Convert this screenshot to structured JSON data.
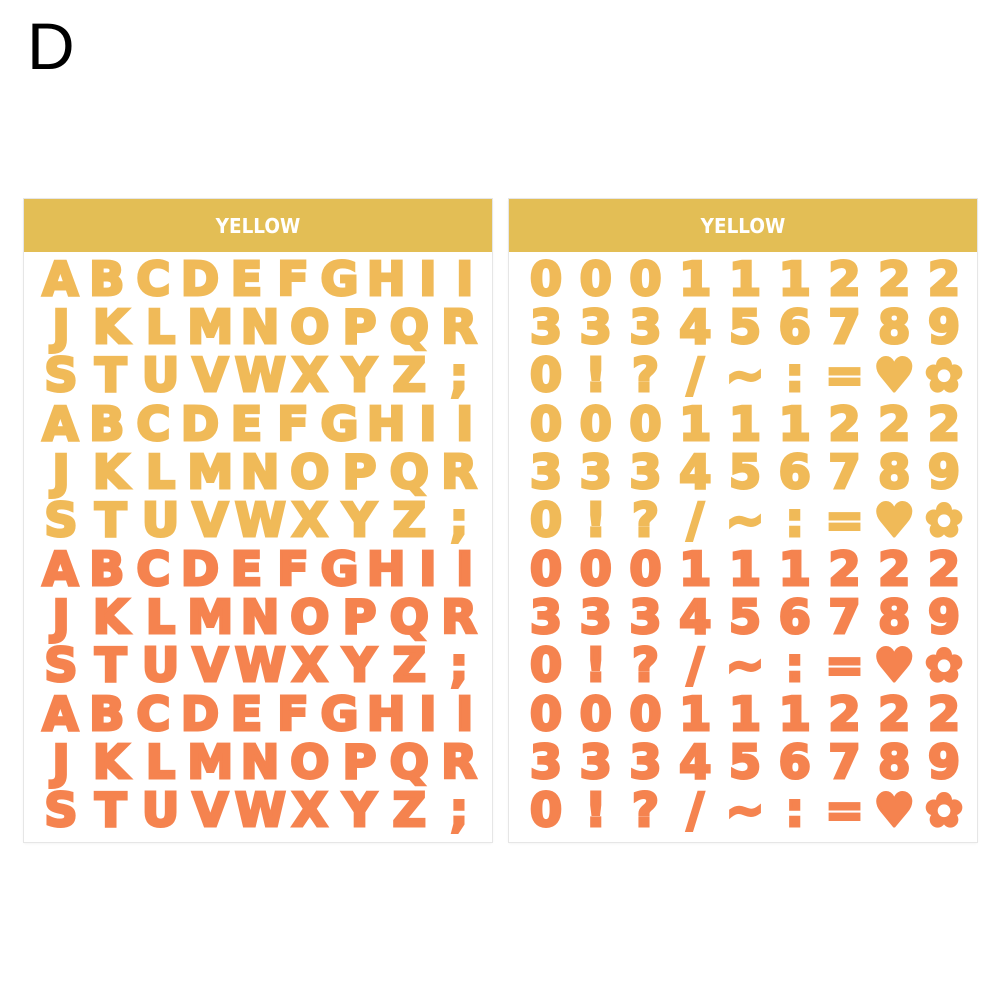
{
  "variant_label": "D",
  "colors": {
    "header_band": "#E3BE55",
    "yellow_sticker": "#F0BA58",
    "orange_sticker": "#F5834F",
    "header_text": "#FFFFFF"
  },
  "sheets": [
    {
      "title": "YELLOW",
      "type": "letters",
      "blocks": [
        {
          "color": "yellow",
          "rows": [
            [
              "A",
              "B",
              "C",
              "D",
              "E",
              "F",
              "G",
              "H",
              "I",
              "I"
            ],
            [
              "J",
              "K",
              "L",
              "M",
              "N",
              "O",
              "P",
              "Q",
              "R"
            ],
            [
              "S",
              "T",
              "U",
              "V",
              "W",
              "X",
              "Y",
              "Z",
              ";"
            ]
          ]
        },
        {
          "color": "yellow",
          "rows": [
            [
              "A",
              "B",
              "C",
              "D",
              "E",
              "F",
              "G",
              "H",
              "I",
              "I"
            ],
            [
              "J",
              "K",
              "L",
              "M",
              "N",
              "O",
              "P",
              "Q",
              "R"
            ],
            [
              "S",
              "T",
              "U",
              "V",
              "W",
              "X",
              "Y",
              "Z",
              ";"
            ]
          ]
        },
        {
          "color": "orange",
          "rows": [
            [
              "A",
              "B",
              "C",
              "D",
              "E",
              "F",
              "G",
              "H",
              "I",
              "I"
            ],
            [
              "J",
              "K",
              "L",
              "M",
              "N",
              "O",
              "P",
              "Q",
              "R"
            ],
            [
              "S",
              "T",
              "U",
              "V",
              "W",
              "X",
              "Y",
              "Z",
              ";"
            ]
          ]
        },
        {
          "color": "orange",
          "rows": [
            [
              "A",
              "B",
              "C",
              "D",
              "E",
              "F",
              "G",
              "H",
              "I",
              "I"
            ],
            [
              "J",
              "K",
              "L",
              "M",
              "N",
              "O",
              "P",
              "Q",
              "R"
            ],
            [
              "S",
              "T",
              "U",
              "V",
              "W",
              "X",
              "Y",
              "Z",
              ";"
            ]
          ]
        }
      ]
    },
    {
      "title": "YELLOW",
      "type": "numbers",
      "blocks": [
        {
          "color": "yellow",
          "rows": [
            [
              "0",
              "0",
              "0",
              "1",
              "1",
              "1",
              "2",
              "2",
              "2"
            ],
            [
              "3",
              "3",
              "3",
              "4",
              "5",
              "6",
              "7",
              "8",
              "9"
            ],
            [
              "0",
              "!",
              "?",
              "/",
              "~",
              ":",
              "=",
              "♥",
              "✿"
            ]
          ]
        },
        {
          "color": "yellow",
          "rows": [
            [
              "0",
              "0",
              "0",
              "1",
              "1",
              "1",
              "2",
              "2",
              "2"
            ],
            [
              "3",
              "3",
              "3",
              "4",
              "5",
              "6",
              "7",
              "8",
              "9"
            ],
            [
              "0",
              "!",
              "?",
              "/",
              "~",
              ":",
              "=",
              "♥",
              "✿"
            ]
          ]
        },
        {
          "color": "orange",
          "rows": [
            [
              "0",
              "0",
              "0",
              "1",
              "1",
              "1",
              "2",
              "2",
              "2"
            ],
            [
              "3",
              "3",
              "3",
              "4",
              "5",
              "6",
              "7",
              "8",
              "9"
            ],
            [
              "0",
              "!",
              "?",
              "/",
              "~",
              ":",
              "=",
              "♥",
              "✿"
            ]
          ]
        },
        {
          "color": "orange",
          "rows": [
            [
              "0",
              "0",
              "0",
              "1",
              "1",
              "1",
              "2",
              "2",
              "2"
            ],
            [
              "3",
              "3",
              "3",
              "4",
              "5",
              "6",
              "7",
              "8",
              "9"
            ],
            [
              "0",
              "!",
              "?",
              "/",
              "~",
              ":",
              "=",
              "♥",
              "✿"
            ]
          ]
        }
      ]
    }
  ]
}
